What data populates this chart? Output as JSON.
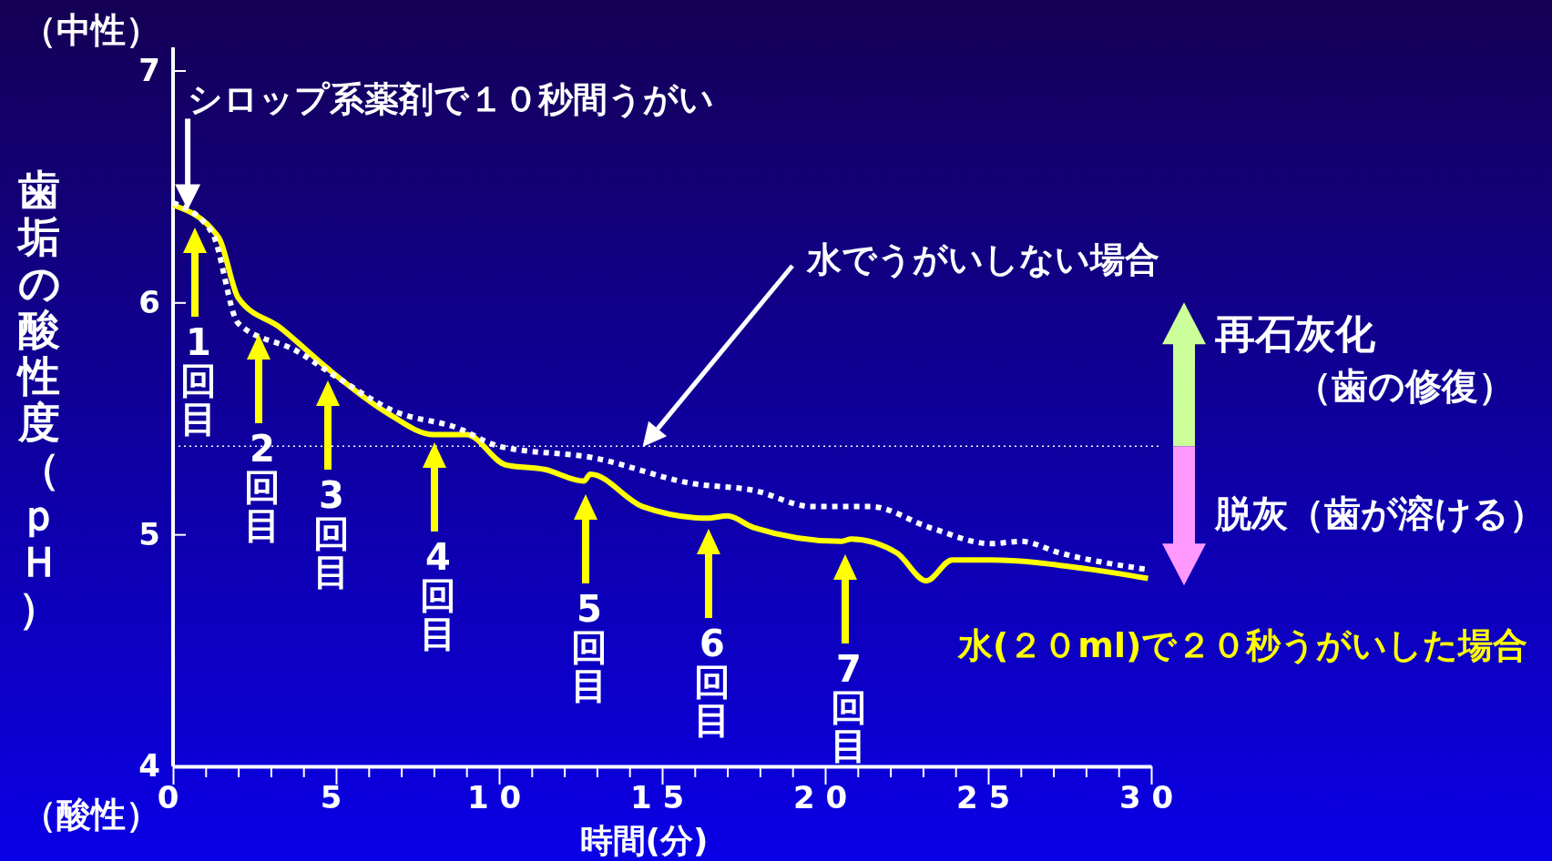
{
  "chart_data": {
    "type": "line",
    "xlabel": "時間(分)",
    "ylabel": "歯垢の酸性度（ｐＨ）",
    "xlim": [
      0,
      30
    ],
    "ylim": [
      4,
      7.1
    ],
    "xticks": [
      0,
      {
        "value": 1,
        "label": null
      },
      {
        "value": 2,
        "label": null
      },
      {
        "value": 3,
        "label": null
      },
      {
        "value": 4,
        "label": null
      },
      5,
      {
        "value": 6,
        "label": null
      },
      {
        "value": 7,
        "label": null
      },
      {
        "value": 8,
        "label": null
      },
      {
        "value": 9,
        "label": null
      },
      10,
      {
        "value": 11,
        "label": null
      },
      {
        "value": 12,
        "label": null
      },
      {
        "value": 13,
        "label": null
      },
      {
        "value": 14,
        "label": null
      },
      15,
      {
        "value": 16,
        "label": null
      },
      {
        "value": 17,
        "label": null
      },
      {
        "value": 18,
        "label": null
      },
      {
        "value": 19,
        "label": null
      },
      20,
      {
        "value": 21,
        "label": null
      },
      {
        "value": 22,
        "label": null
      },
      {
        "value": 23,
        "label": null
      },
      {
        "value": 24,
        "label": null
      },
      25,
      {
        "value": 26,
        "label": null
      },
      {
        "value": 27,
        "label": null
      },
      {
        "value": 28,
        "label": null
      },
      {
        "value": 29,
        "label": null
      },
      30
    ],
    "yticks": [
      4,
      5,
      6,
      7
    ],
    "grid": false,
    "legend": false,
    "marker": "none",
    "series": [
      {
        "name": "水(２０ml)で２０秒うがいした場合",
        "color": "#ffff00",
        "line_style": "solid",
        "x": [
          0,
          1.4,
          2,
          3.3,
          4.7,
          6.5,
          8,
          9,
          10.2,
          11.4,
          12.6,
          12.8,
          14.4,
          16.4,
          17,
          17.8,
          20.5,
          20.8,
          22.2,
          23.1,
          23.9,
          25.1,
          28.1,
          29.9
        ],
        "values": [
          6.42,
          6.28,
          6.02,
          5.89,
          5.72,
          5.53,
          5.43,
          5.43,
          5.3,
          5.28,
          5.23,
          5.26,
          5.12,
          5.07,
          5.08,
          5.03,
          4.97,
          4.98,
          4.92,
          4.8,
          4.89,
          4.89,
          4.85,
          4.81
        ]
      },
      {
        "name": "水でうがいしない場合",
        "color": "#ffffff",
        "line_style": "dotted",
        "x": [
          0,
          1.2,
          2,
          3.8,
          5,
          6.8,
          8.7,
          10,
          12.9,
          15.9,
          17.8,
          19.6,
          21.4,
          23.2,
          25.1,
          26,
          27.2,
          29.8
        ],
        "values": [
          6.43,
          6.3,
          5.91,
          5.79,
          5.68,
          5.53,
          5.46,
          5.38,
          5.33,
          5.22,
          5.19,
          5.12,
          5.12,
          5.03,
          4.96,
          4.97,
          4.92,
          4.85
        ]
      }
    ],
    "ref_lines": [
      {
        "axis": "y",
        "value": 5.38,
        "color": "#ffffff",
        "line_style": "dotted"
      }
    ],
    "annotations": [
      "（中性）",
      "（酸性）",
      {
        "text": "シロップ系薬剤で１０秒間うがい",
        "x": 0.45,
        "y": 6.4
      },
      "1回目",
      "2回目",
      "3回目",
      "4回目",
      "5回目",
      "6回目",
      "7回目",
      "再石灰化",
      "（歯の修復）",
      "脱灰（歯が溶ける）"
    ]
  }
}
